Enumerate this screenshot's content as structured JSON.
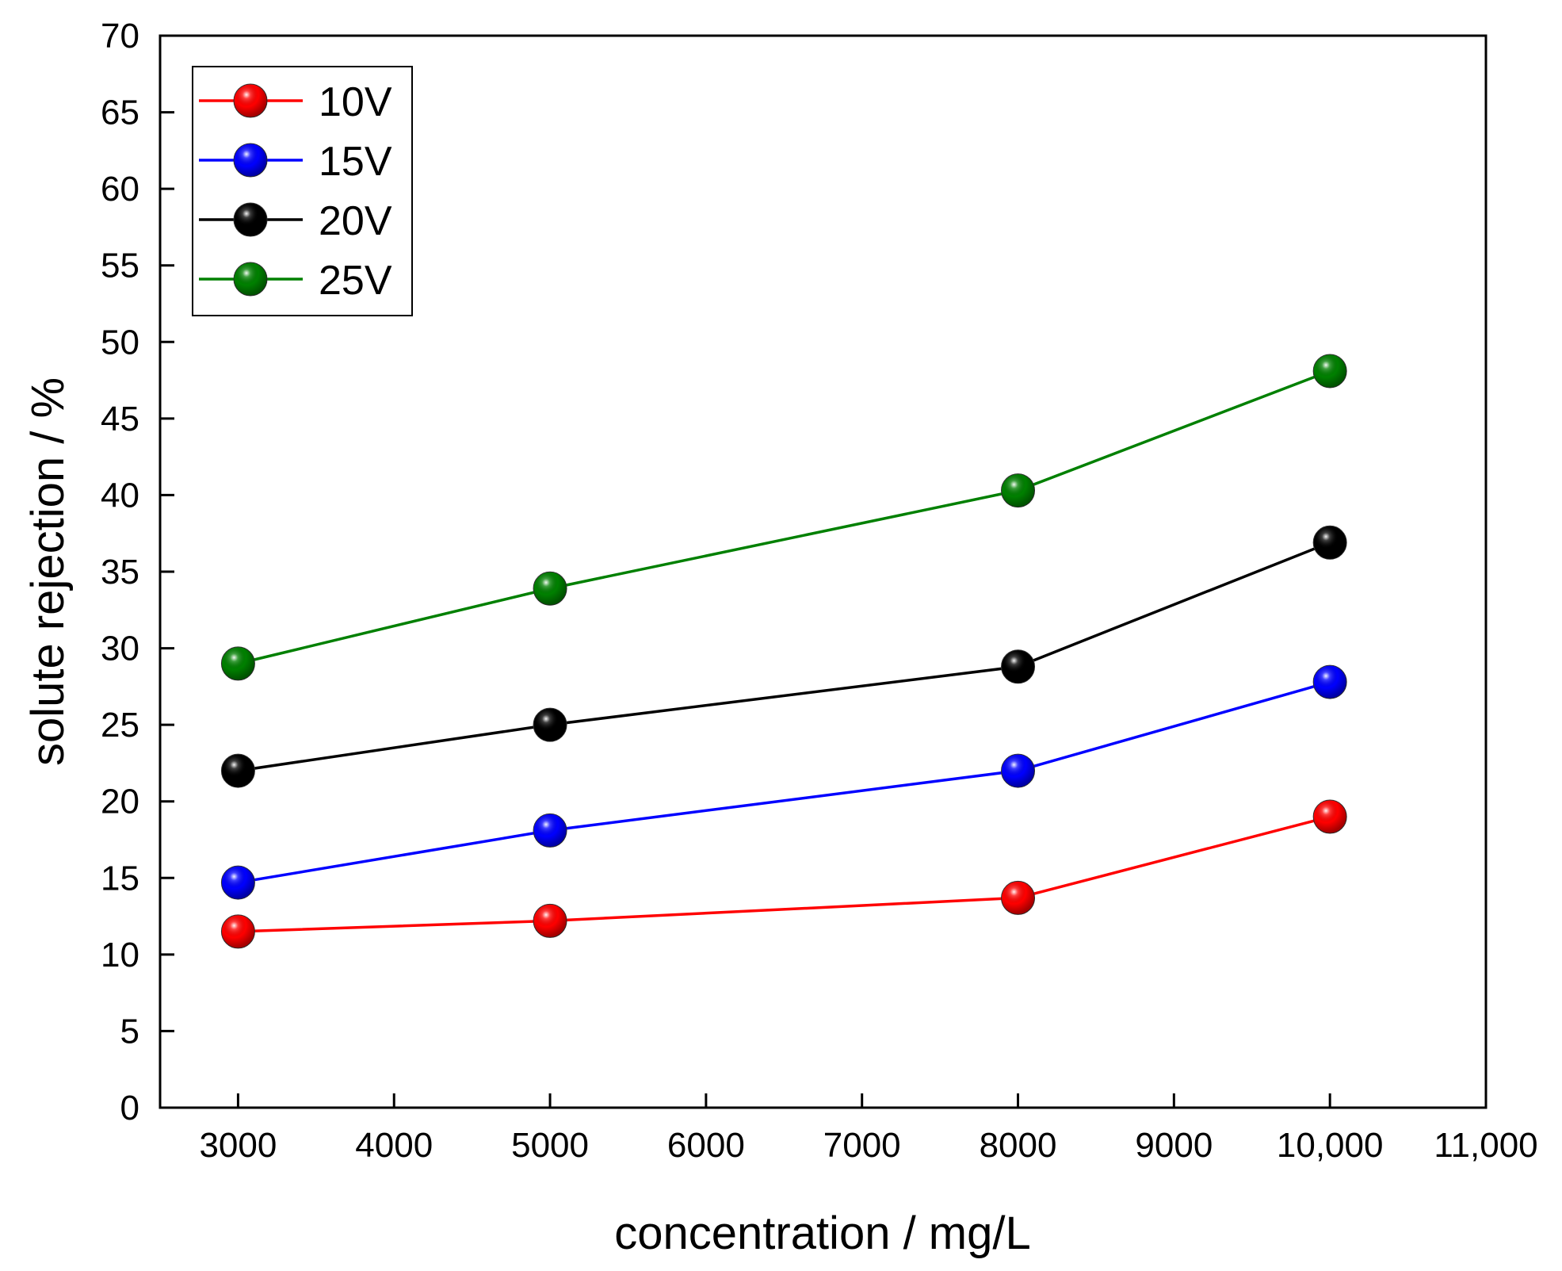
{
  "chart_data": {
    "type": "line",
    "title": "",
    "xlabel": "concentration / mg/L",
    "ylabel": "solute rejection / %",
    "xlim": [
      2500,
      11000
    ],
    "ylim": [
      0,
      70
    ],
    "xticks": [
      3000,
      4000,
      5000,
      6000,
      7000,
      8000,
      9000,
      10000,
      11000
    ],
    "xtick_labels": [
      "3000",
      "4000",
      "5000",
      "6000",
      "7000",
      "8000",
      "9000",
      "10,000",
      "11,000"
    ],
    "yticks": [
      0,
      5,
      10,
      15,
      20,
      25,
      30,
      35,
      40,
      45,
      50,
      55,
      60,
      65,
      70
    ],
    "ytick_labels": [
      "0",
      "5",
      "10",
      "15",
      "20",
      "25",
      "30",
      "35",
      "40",
      "45",
      "50",
      "55",
      "60",
      "65",
      "70"
    ],
    "grid": false,
    "legend_position": "top-left",
    "x": [
      3000,
      5000,
      8000,
      10000
    ],
    "series": [
      {
        "name": "10V",
        "color": "#ff0000",
        "values": [
          11.5,
          12.2,
          13.7,
          19.0
        ]
      },
      {
        "name": "15V",
        "color": "#0000ff",
        "values": [
          14.7,
          18.1,
          22.0,
          27.8
        ]
      },
      {
        "name": "20V",
        "color": "#000000",
        "values": [
          22.0,
          25.0,
          28.8,
          36.9
        ]
      },
      {
        "name": "25V",
        "color": "#008000",
        "values": [
          29.0,
          33.9,
          40.3,
          48.1
        ]
      }
    ]
  }
}
